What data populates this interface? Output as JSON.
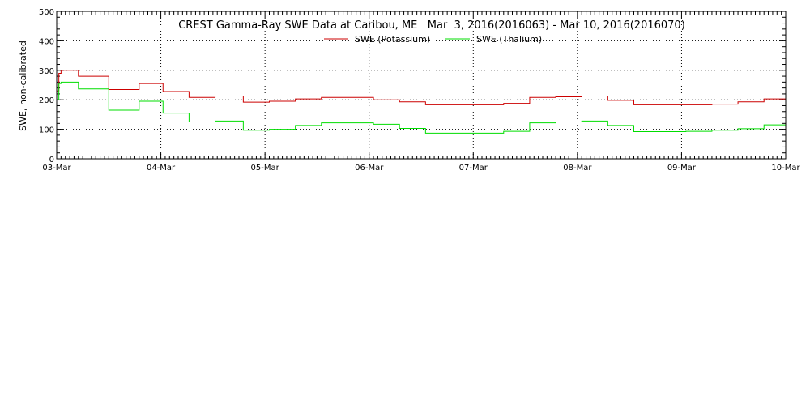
{
  "chart_data": {
    "type": "line",
    "title": "CREST Gamma-Ray SWE Data at Caribou, ME   Mar  3, 2016(2016063) - Mar 10, 2016(2016070)",
    "xlabel": "",
    "ylabel": "SWE, non-calibrated",
    "ylim": [
      0,
      500
    ],
    "xlim": [
      "2016-03-03",
      "2016-03-10"
    ],
    "yticks": [
      "0",
      "100",
      "200",
      "300",
      "400",
      "500"
    ],
    "xticks": [
      "03-Mar",
      "04-Mar",
      "05-Mar",
      "06-Mar",
      "07-Mar",
      "08-Mar",
      "09-Mar",
      "10-Mar"
    ],
    "grid": true,
    "legend_position": "top-center",
    "x": [
      "2016-03-03T00:00",
      "2016-03-03T00:30",
      "2016-03-03T01:00",
      "2016-03-03T04:30",
      "2016-03-03T05:00",
      "2016-03-03T12:00",
      "2016-03-03T19:00",
      "2016-03-04T00:30",
      "2016-03-04T06:30",
      "2016-03-04T12:30",
      "2016-03-04T19:00",
      "2016-03-05T01:00",
      "2016-03-05T07:00",
      "2016-03-05T13:00",
      "2016-03-05T19:00",
      "2016-03-06T01:00",
      "2016-03-06T07:00",
      "2016-03-06T13:00",
      "2016-03-06T19:00",
      "2016-03-07T01:00",
      "2016-03-07T07:00",
      "2016-03-07T13:00",
      "2016-03-07T19:00",
      "2016-03-08T01:00",
      "2016-03-08T07:00",
      "2016-03-08T13:00",
      "2016-03-08T19:00",
      "2016-03-09T01:00",
      "2016-03-09T07:00",
      "2016-03-09T13:00",
      "2016-03-09T19:00",
      "2016-03-09T23:00"
    ],
    "series": [
      {
        "name": "SWE (Potassium)",
        "color": "#cc0000",
        "values": [
          230,
          290,
          300,
          300,
          280,
          235,
          255,
          228,
          208,
          213,
          192,
          195,
          203,
          208,
          208,
          200,
          193,
          183,
          183,
          183,
          188,
          208,
          210,
          213,
          198,
          183,
          183,
          183,
          185,
          193,
          203,
          203
        ]
      },
      {
        "name": "SWE (Thalium)",
        "color": "#00dd00",
        "values": [
          200,
          255,
          260,
          260,
          237,
          165,
          195,
          155,
          125,
          128,
          97,
          100,
          113,
          122,
          122,
          117,
          103,
          87,
          87,
          87,
          93,
          122,
          125,
          128,
          113,
          92,
          92,
          93,
          97,
          102,
          115,
          115
        ]
      }
    ]
  }
}
